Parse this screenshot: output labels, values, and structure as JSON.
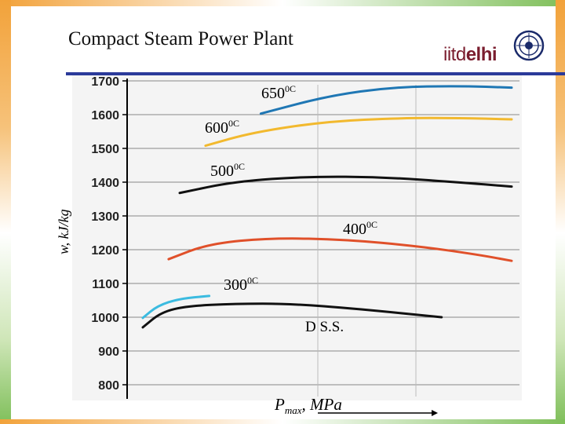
{
  "slide": {
    "title": "Compact Steam Power Plant",
    "logo_text_a": "iitd",
    "logo_text_b": "elhi"
  },
  "chart_data": {
    "type": "line",
    "ylabel": "w, kJ/kg",
    "xlabel_main": "P",
    "xlabel_sub": "max",
    "xlabel_tail": ", MPa",
    "yticks": [
      800,
      900,
      1000,
      1100,
      1200,
      1300,
      1400,
      1500,
      1600,
      1700
    ],
    "ylim": [
      800,
      1700
    ],
    "grid": true,
    "annotation": "D S.S.",
    "series": [
      {
        "name": "650",
        "name_sup": "0C",
        "color": "#1f77b4",
        "points": [
          [
            0.32,
            1603
          ],
          [
            0.5,
            1655
          ],
          [
            0.68,
            1682
          ],
          [
            0.86,
            1685
          ],
          [
            1.0,
            1680
          ]
        ]
      },
      {
        "name": "600",
        "name_sup": "0C",
        "color": "#f2b92e",
        "points": [
          [
            0.17,
            1508
          ],
          [
            0.3,
            1548
          ],
          [
            0.5,
            1580
          ],
          [
            0.7,
            1590
          ],
          [
            0.86,
            1590
          ],
          [
            1.0,
            1586
          ]
        ]
      },
      {
        "name": "500",
        "name_sup": "0C",
        "color": "#111111",
        "points": [
          [
            0.1,
            1368
          ],
          [
            0.25,
            1402
          ],
          [
            0.45,
            1417
          ],
          [
            0.65,
            1415
          ],
          [
            0.85,
            1400
          ],
          [
            1.0,
            1387
          ]
        ]
      },
      {
        "name": "400",
        "name_sup": "0C",
        "color": "#e0502a",
        "points": [
          [
            0.07,
            1172
          ],
          [
            0.18,
            1218
          ],
          [
            0.35,
            1235
          ],
          [
            0.55,
            1230
          ],
          [
            0.75,
            1210
          ],
          [
            0.91,
            1185
          ],
          [
            1.0,
            1167
          ]
        ]
      },
      {
        "name": "300",
        "name_sup": "0C",
        "color": "#3bbbe0",
        "points": [
          [
            0.0,
            998
          ],
          [
            0.04,
            1034
          ],
          [
            0.1,
            1055
          ],
          [
            0.18,
            1063
          ]
        ]
      },
      {
        "name": "",
        "name_sup": "",
        "color": "#111111",
        "points": [
          [
            0.0,
            970
          ],
          [
            0.05,
            1015
          ],
          [
            0.12,
            1033
          ],
          [
            0.25,
            1040
          ],
          [
            0.4,
            1040
          ],
          [
            0.58,
            1025
          ],
          [
            0.81,
            1000
          ]
        ]
      }
    ]
  }
}
